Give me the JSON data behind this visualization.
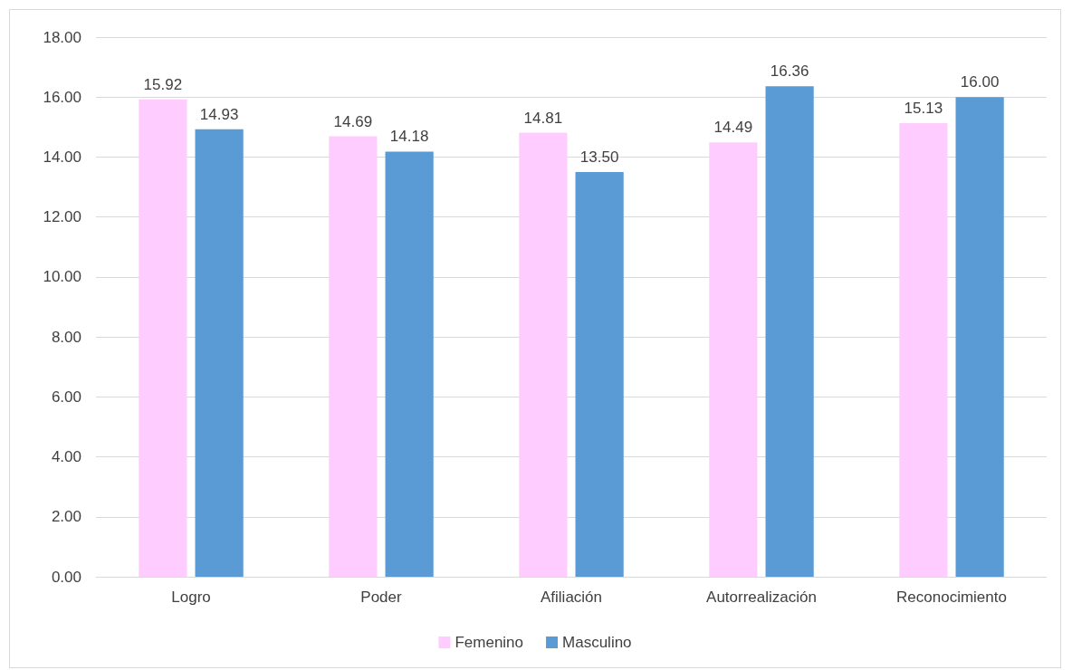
{
  "chart_data": {
    "type": "bar",
    "categories": [
      "Logro",
      "Poder",
      "Afiliación",
      "Autorrealización",
      "Reconocimiento"
    ],
    "series": [
      {
        "name": "Femenino",
        "color": "#ffccff",
        "values": [
          15.92,
          14.69,
          14.81,
          14.49,
          15.13
        ],
        "value_labels": [
          "15.92",
          "14.69",
          "14.81",
          "14.49",
          "15.13"
        ]
      },
      {
        "name": "Masculino",
        "color": "#5b9bd5",
        "values": [
          14.93,
          14.18,
          13.5,
          16.36,
          16.0
        ],
        "value_labels": [
          "14.93",
          "14.18",
          "13.50",
          "16.36",
          "16.00"
        ]
      }
    ],
    "ylim": [
      0,
      18
    ],
    "yticks": [
      {
        "value": 0,
        "label": "0.00"
      },
      {
        "value": 2,
        "label": "2.00"
      },
      {
        "value": 4,
        "label": "4.00"
      },
      {
        "value": 6,
        "label": "6.00"
      },
      {
        "value": 8,
        "label": "8.00"
      },
      {
        "value": 10,
        "label": "10.00"
      },
      {
        "value": 12,
        "label": "12.00"
      },
      {
        "value": 14,
        "label": "14.00"
      },
      {
        "value": 16,
        "label": "16.00"
      },
      {
        "value": 18,
        "label": "18.00"
      }
    ],
    "grid": "y",
    "legend": "bottom"
  }
}
